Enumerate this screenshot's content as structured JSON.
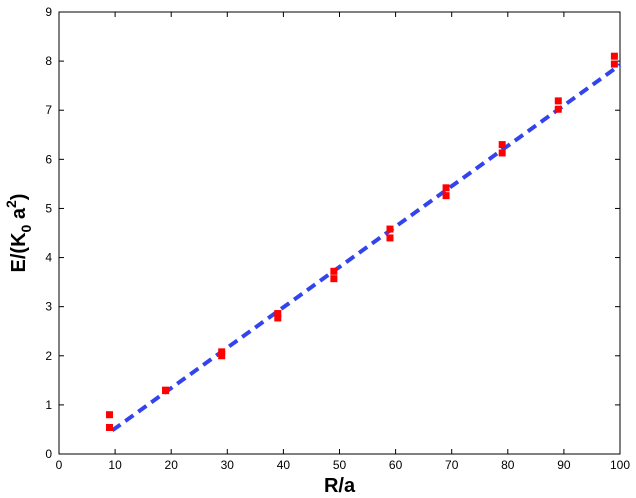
{
  "chart_data": {
    "type": "scatter",
    "title": "",
    "xlabel": "R/a",
    "ylabel": {
      "main": "E/(K",
      "sub": "0",
      "mid": " a",
      "sup": "2",
      "end": ")"
    },
    "xlim": [
      0,
      100
    ],
    "ylim": [
      0,
      9
    ],
    "xticks": [
      "0",
      "10",
      "20",
      "30",
      "40",
      "50",
      "60",
      "70",
      "80",
      "90",
      "100"
    ],
    "yticks": [
      "0",
      "1",
      "2",
      "3",
      "4",
      "5",
      "6",
      "7",
      "8",
      "9"
    ],
    "grid": false,
    "legend": "none",
    "series": [
      {
        "kind": "markers",
        "marker": "square",
        "color": "#ff0000",
        "points": [
          [
            9,
            0.8
          ],
          [
            9,
            0.54
          ],
          [
            19,
            1.3
          ],
          [
            19,
            1.29
          ],
          [
            29,
            2.08
          ],
          [
            29,
            2.0
          ],
          [
            39,
            2.86
          ],
          [
            39,
            2.77
          ],
          [
            49,
            3.72
          ],
          [
            49,
            3.57
          ],
          [
            59,
            4.58
          ],
          [
            59,
            4.4
          ],
          [
            69,
            5.42
          ],
          [
            69,
            5.26
          ],
          [
            79,
            6.3
          ],
          [
            79,
            6.13
          ],
          [
            89,
            7.19
          ],
          [
            89,
            7.02
          ],
          [
            99,
            8.1
          ],
          [
            99,
            7.94
          ]
        ]
      },
      {
        "kind": "line",
        "style": "dashed",
        "color": "#3344ee",
        "points": [
          [
            9.5,
            0.48
          ],
          [
            100,
            7.92
          ]
        ]
      }
    ]
  }
}
